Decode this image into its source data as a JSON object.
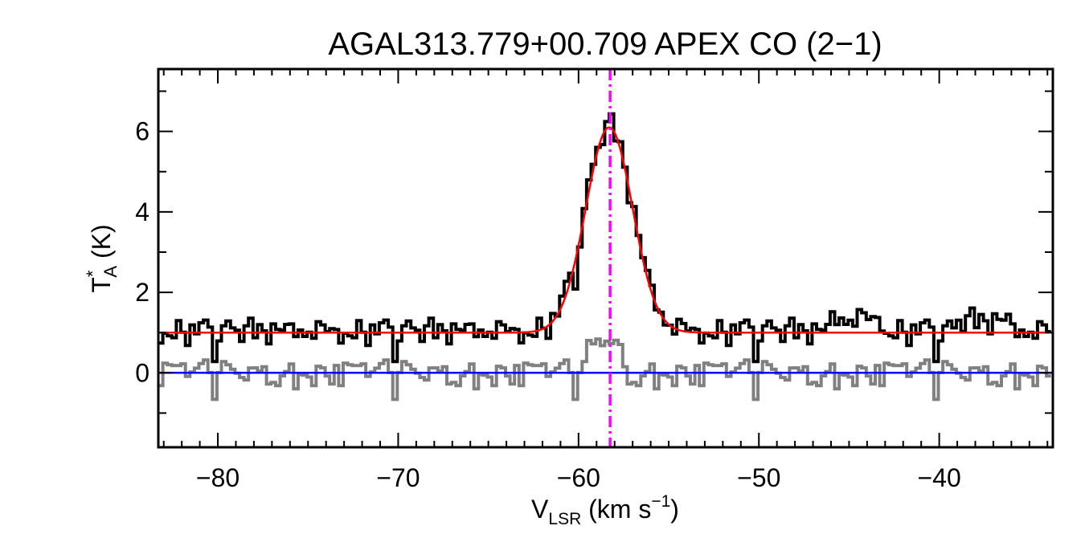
{
  "chart_data": {
    "type": "line",
    "title": "AGAL313.779+00.709  APEX CO (2−1)",
    "xlabel": {
      "main": "V",
      "sub": "LSR",
      "mid": " (km s",
      "sup": "−1",
      "end": ")"
    },
    "ylabel": {
      "main": "T",
      "sup": "*",
      "sub": "A",
      "end": " (K)"
    },
    "xlim": [
      -83.3,
      -33.7
    ],
    "ylim": [
      -1.85,
      7.55
    ],
    "xticks": [
      -80,
      -70,
      -60,
      -50,
      -40
    ],
    "xtick_labels": [
      "−80",
      "−70",
      "−60",
      "−50",
      "−40"
    ],
    "yticks": [
      0,
      2,
      4,
      6
    ],
    "ytick_labels": [
      "0",
      "2",
      "4",
      "6"
    ],
    "channel_width": 0.25,
    "series": [
      {
        "name": "spectrum",
        "style": "histogram",
        "color": "#000000",
        "baseline": 1.0,
        "noise": [
          0.22,
          -0.15,
          0.05,
          -0.2,
          0.18,
          -0.35,
          0.12,
          -0.6,
          0.25,
          -0.1,
          0.08,
          -0.25,
          0.3,
          -0.05,
          -0.4,
          0.15,
          0.1,
          -0.3,
          0.22,
          -0.15,
          0.28,
          0.02,
          -0.12,
          0.35,
          -0.2,
          0.05,
          0.18,
          -0.08,
          0.3,
          0.1,
          -0.25,
          0.2,
          0.05,
          0.38,
          -0.1,
          0.22,
          0.12,
          0.4,
          -0.05,
          0.18
        ],
        "components": [
          {
            "amplitude": 5.1,
            "center": -58.3,
            "sigma": 1.3
          }
        ],
        "extra_features": [
          {
            "x": [
              -46,
              -43
            ],
            "add": 0.3
          },
          {
            "x": [
              -39,
              -36
            ],
            "add": 0.25
          }
        ]
      },
      {
        "name": "residual",
        "style": "histogram",
        "color": "#808080",
        "baseline": 0.0,
        "noise": [
          0.1,
          -0.2,
          0.05,
          -0.3,
          0.15,
          -0.05,
          0.2,
          -0.55,
          0.08,
          -0.12,
          0.25,
          -0.2,
          0.1,
          -0.4,
          0.05,
          0.18,
          -0.1,
          0.3,
          -0.25,
          0.12,
          -0.08,
          0.2,
          -0.15,
          0.05,
          0.1,
          -0.3,
          0.25,
          -0.05,
          0.15,
          -0.2,
          0.08,
          0.2,
          -0.12,
          0.3,
          -0.18,
          0.05,
          0.12,
          -0.1,
          0.22,
          -0.05
        ],
        "bump": {
          "x": [
            -59.5,
            -57.5
          ],
          "value": 0.75
        }
      },
      {
        "name": "gaussian fit",
        "style": "line",
        "color": "#ff0000",
        "baseline": 1.0,
        "components": [
          {
            "amplitude": 5.1,
            "center": -58.3,
            "sigma": 1.3
          }
        ]
      },
      {
        "name": "zero baseline",
        "style": "hline",
        "color": "#0000ff",
        "value": 0
      }
    ],
    "annotations": [
      {
        "type": "vline",
        "x": -58.25,
        "color": "#ff00ff",
        "style": "dash-dot",
        "label": "source velocity"
      }
    ]
  }
}
